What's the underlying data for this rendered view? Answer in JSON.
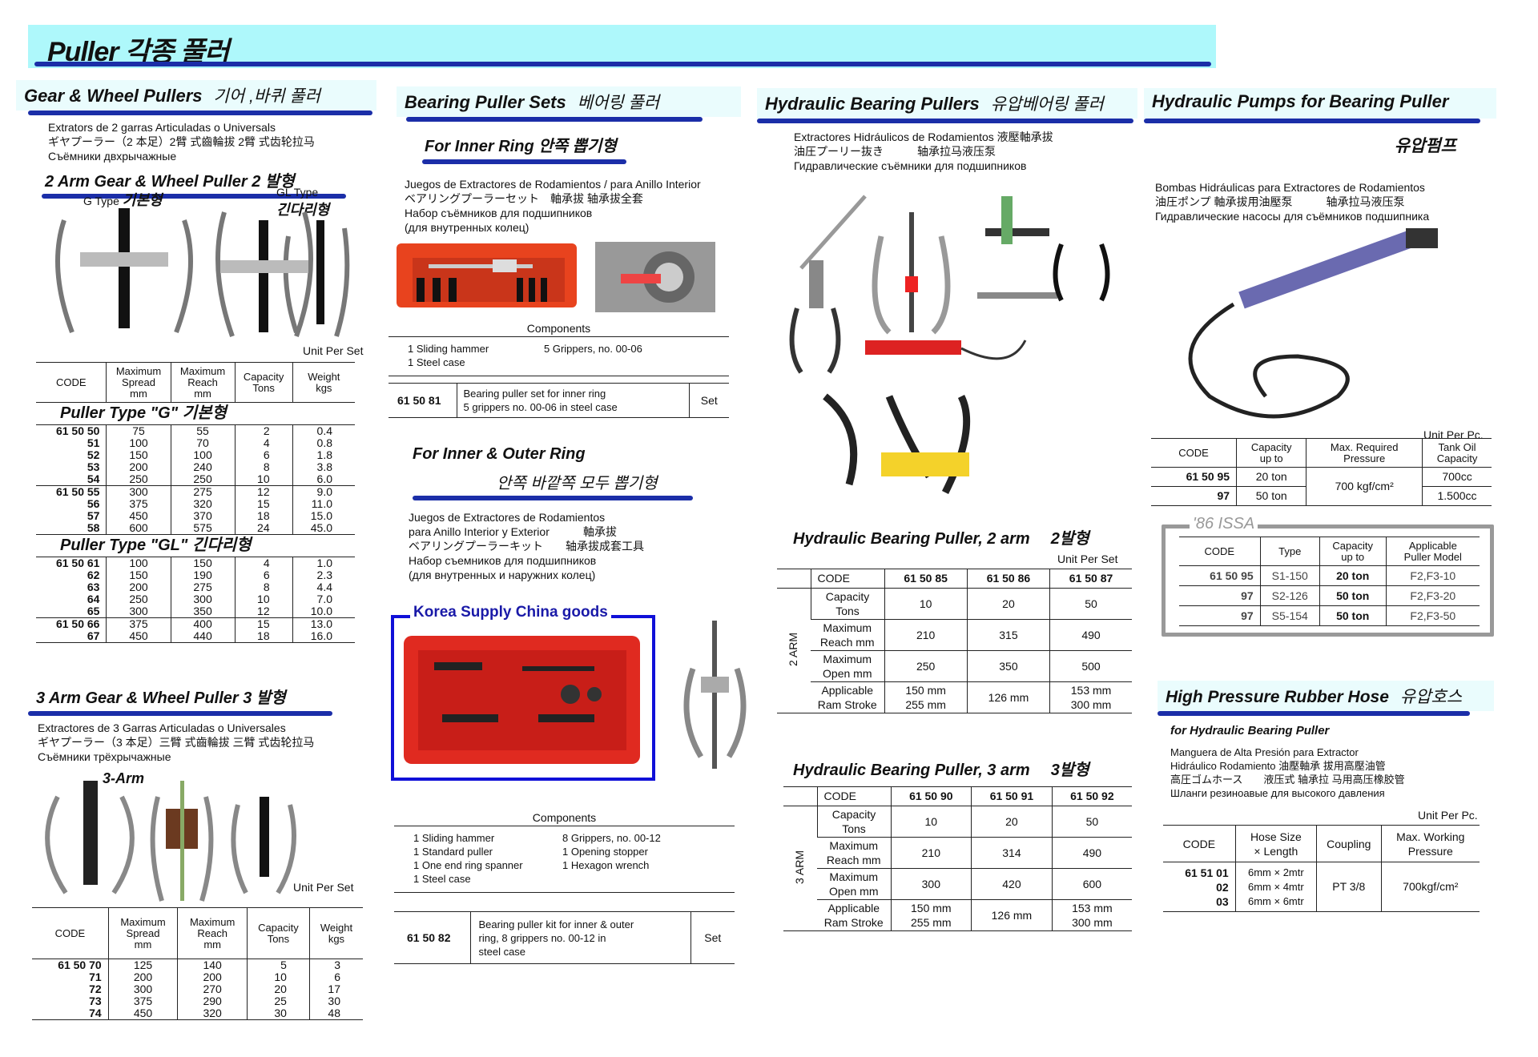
{
  "title": "Puller  각종 풀러",
  "colors": {
    "title_bg": "#aef8fb",
    "underline": "#1b2ea8",
    "issa_border": "#999999",
    "korea_box": "#1010d8"
  },
  "gear": {
    "heading": "Gear & Wheel Pullers",
    "heading_kr": "기어 ,바퀴 풀러",
    "lines": "Extrators de 2 garras Articuladas o Universals\nギヤプーラー（2 本足）2臂 式齒輪拔 2臂 式齿轮拉马\nСъёмники двхрычажные",
    "two_arm_title": "2 Arm Gear & Wheel Puller  2 발형",
    "g_type": "G Type",
    "g_type_kr": "기본형",
    "gl_type": "GL Type",
    "gl_type_kr": "긴다리형",
    "unit": "Unit Per Set",
    "table": {
      "headers": [
        "CODE",
        "Maximum\nSpread\nmm",
        "Maximum\nReach\nmm",
        "Capacity\nTons",
        "Weight\nkgs"
      ],
      "type_g": "Puller Type \"G\"    기본형",
      "g_groups": [
        [
          [
            "61 50 50",
            "75",
            "55",
            "2",
            "0.4"
          ],
          [
            "51",
            "100",
            "70",
            "4",
            "0.8"
          ],
          [
            "52",
            "150",
            "100",
            "6",
            "1.8"
          ],
          [
            "53",
            "200",
            "240",
            "8",
            "3.8"
          ],
          [
            "54",
            "250",
            "250",
            "10",
            "6.0"
          ]
        ],
        [
          [
            "61 50 55",
            "300",
            "275",
            "12",
            "9.0"
          ],
          [
            "56",
            "375",
            "320",
            "15",
            "11.0"
          ],
          [
            "57",
            "450",
            "370",
            "18",
            "15.0"
          ],
          [
            "58",
            "600",
            "575",
            "24",
            "45.0"
          ]
        ]
      ],
      "type_gl": "Puller Type \"GL\"    긴다리형",
      "gl_groups": [
        [
          [
            "61 50 61",
            "100",
            "150",
            "4",
            "1.0"
          ],
          [
            "62",
            "150",
            "190",
            "6",
            "2.3"
          ],
          [
            "63",
            "200",
            "275",
            "8",
            "4.4"
          ],
          [
            "64",
            "250",
            "300",
            "10",
            "7.0"
          ],
          [
            "65",
            "300",
            "350",
            "12",
            "10.0"
          ]
        ],
        [
          [
            "61 50 66",
            "375",
            "400",
            "15",
            "13.0"
          ],
          [
            "67",
            "450",
            "440",
            "18",
            "16.0"
          ]
        ]
      ]
    }
  },
  "three_arm": {
    "heading": "3 Arm Gear & Wheel Puller  3 발형",
    "lines": "Extractores de 3 Garras Articuladas o Universales\nギヤプーラー（3 本足）三臂 式齒輪拔 三臂 式齿轮拉马\nСъёмники трёхрычажные",
    "image_label": "3-Arm",
    "unit": "Unit Per Set",
    "table": {
      "headers": [
        "CODE",
        "Maximum\nSpread\nmm",
        "Maximum\nReach\nmm",
        "Capacity\nTons",
        "Weight\nkgs"
      ],
      "groups": [
        [
          [
            "61 50 70",
            "125",
            "140",
            "5",
            "3"
          ],
          [
            "71",
            "200",
            "200",
            "10",
            "6"
          ],
          [
            "72",
            "300",
            "270",
            "20",
            "17"
          ],
          [
            "73",
            "375",
            "290",
            "25",
            "30"
          ],
          [
            "74",
            "450",
            "320",
            "30",
            "48"
          ]
        ]
      ]
    }
  },
  "bearing_sets": {
    "heading": "Bearing Puller Sets",
    "heading_kr": "베어링 풀러",
    "inner": {
      "title": "For Inner Ring  안쪽 뽑기형",
      "lines": "Juegos de Extractores de Rodamientos / para Anillo Interior\nベアリングプーラーセット　軸承拔 轴承拔全套\nНабор съёмников для подшипников\n(для внутренных колец)",
      "components_label": "Components",
      "components_left": "1 Sliding hammer\n1 Steel case",
      "components_right": "5 Grippers, no. 00-06",
      "code": "61 50 81",
      "desc": "Bearing puller set for inner ring\n5 grippers no. 00-06 in steel case",
      "unit": "Set"
    },
    "outer": {
      "title": "For Inner & Outer Ring",
      "title_kr": "안쪽 바깥쪽 모두 뽑기형",
      "lines": "Juegos de Extractores de Rodamientos\npara Anillo Interior y Exterior　　　軸承拔\nベアリングプーラーキット　　轴承拔成套工具\nНабор съемников для подшипников\n(для внутренных и наружних колец)",
      "korea_label": "Korea Supply China goods",
      "components_label": "Components",
      "components_left": "1 Sliding hammer\n1 Standard puller\n1 One end ring spanner\n1 Steel case",
      "components_right": "8 Grippers, no. 00-12\n1 Opening stopper\n1 Hexagon wrench",
      "code": "61 50 82",
      "desc": "Bearing puller kit for inner & outer\nring, 8 grippers no. 00-12 in\nsteel case",
      "unit": "Set"
    }
  },
  "hydraulic": {
    "heading": "Hydraulic Bearing Pullers",
    "heading_kr": "유압베어링 풀러",
    "lines": "Extractores Hidráulicos de Rodamientos  液壓軸承拔\n油圧プーリー抜き　　　轴承拉马液压泵\nГидравлические съёмники для подшипников",
    "two": {
      "title": "Hydraulic Bearing Puller, 2 arm",
      "title_kr": "2발형",
      "unit": "Unit Per Set",
      "side": "2 ARM",
      "codes": [
        "61 50 85",
        "61 50 86",
        "61 50 87"
      ],
      "rows": [
        [
          "Capacity\nTons",
          "10",
          "20",
          "50"
        ],
        [
          "Maximum\nReach mm",
          "210",
          "315",
          "490"
        ],
        [
          "Maximum\nOpen mm",
          "250",
          "350",
          "500"
        ],
        [
          "Applicable\nRam Stroke",
          "150 mm\n255 mm",
          "126 mm",
          "153 mm\n300 mm"
        ]
      ]
    },
    "three": {
      "title": "Hydraulic Bearing Puller, 3 arm",
      "title_kr": "3발형",
      "side": "3 ARM",
      "codes": [
        "61 50 90",
        "61 50 91",
        "61 50 92"
      ],
      "rows": [
        [
          "Capacity\nTons",
          "10",
          "20",
          "50"
        ],
        [
          "Maximum\nReach mm",
          "210",
          "314",
          "490"
        ],
        [
          "Maximum\nOpen mm",
          "300",
          "420",
          "600"
        ],
        [
          "Applicable\nRam Stroke",
          "150 mm\n255 mm",
          "126 mm",
          "153 mm\n300 mm"
        ]
      ]
    },
    "code_label": "CODE"
  },
  "pumps": {
    "heading": "Hydraulic Pumps for Bearing Puller",
    "heading_kr": "유압펌프",
    "lines": "Bombas Hidráulicas para Extractores de Rodamientos\n油圧ポンプ 軸承拔用油壓泵　　　轴承拉马液压泵\nГидравлические насосы для съёмников подшипника",
    "unit": "Unit Per Pc.",
    "headers": [
      "CODE",
      "Capacity\nup to",
      "Max. Required\nPressure",
      "Tank Oil\nCapacity"
    ],
    "rows": [
      [
        "61 50 95",
        "20 ton",
        "700cc"
      ],
      [
        "97",
        "50 ton",
        "1.500cc"
      ]
    ],
    "pressure": "700 kgf/cm²",
    "issa": {
      "label": "'86 ISSA",
      "headers": [
        "CODE",
        "Type",
        "Capacity\nup to",
        "Applicable\nPuller Model"
      ],
      "rows": [
        [
          "61 50 95",
          "S1-150",
          "20 ton",
          "F2,F3-10"
        ],
        [
          "97",
          "S2-126",
          "50 ton",
          "F2,F3-20"
        ],
        [
          "97",
          "S5-154",
          "50 ton",
          "F2,F3-50"
        ]
      ]
    }
  },
  "hose": {
    "heading": "High Pressure Rubber Hose",
    "heading_kr": "유압호스",
    "sub": "for Hydraulic Bearing Puller",
    "lines": "Manguera de Alta Presión para Extractor\nHidráulico Rodamiento 油壓軸承 拔用高壓油管\n高圧ゴムホース　　液压式 轴承拉 马用高压橡胶管\nШланги резиноавые для высокого давления",
    "unit": "Unit Per Pc.",
    "headers": [
      "CODE",
      "Hose Size\n× Length",
      "Coupling",
      "Max. Working\nPressure"
    ],
    "codes": "61 51 01\n02\n03",
    "sizes": "6mm × 2mtr\n6mm × 4mtr\n6mm × 6mtr",
    "coupling": "PT 3/8",
    "pressure": "700kgf/cm²"
  }
}
